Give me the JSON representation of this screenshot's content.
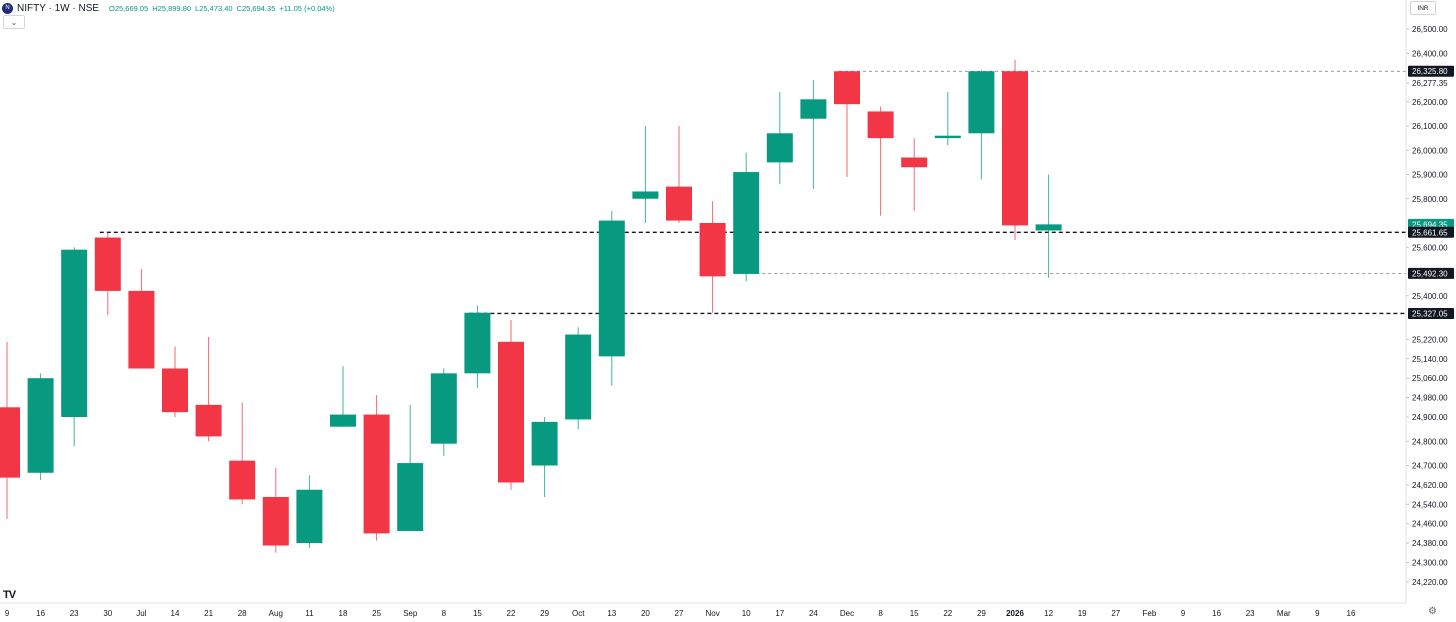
{
  "header": {
    "symbol": "NIFTY · 1W · NSE",
    "open": "O25,669.05",
    "high": "H25,899.80",
    "low": "L25,473.40",
    "close": "C25,694.35",
    "change": "+11.05 (+0.04%)",
    "logo_icon": "nifty-logo-icon",
    "collapse_icon": "chevron-down-icon"
  },
  "currency": "INR",
  "chart_data": {
    "type": "candlestick",
    "title": "",
    "timeframe": "1W",
    "colors": {
      "up": "#089981",
      "down": "#f23645"
    },
    "y_ticks": [
      26500,
      26400,
      26277.35,
      26200,
      26100,
      26000,
      25900,
      25800,
      25600,
      25400,
      25220,
      25140,
      25060,
      24980,
      24900,
      24800,
      24700,
      24620,
      24540,
      24460,
      24380,
      24300,
      24220
    ],
    "y_tick_labels": [
      "26,500.00",
      "26,400.00",
      "26,277.35",
      "26,200.00",
      "26,100.00",
      "26,000.00",
      "25,900.00",
      "25,800.00",
      "25,600.00",
      "25,400.00",
      "25,220.00",
      "25,140.00",
      "25,060.00",
      "24,980.00",
      "24,900.00",
      "24,800.00",
      "24,700.00",
      "24,620.00",
      "24,540.00",
      "24,460.00",
      "24,380.00",
      "24,300.00",
      "24,220.00"
    ],
    "x_labels": [
      {
        "i": 0,
        "t": "9"
      },
      {
        "i": 1,
        "t": "16"
      },
      {
        "i": 2,
        "t": "23"
      },
      {
        "i": 3,
        "t": "30"
      },
      {
        "i": 4,
        "t": "Jul"
      },
      {
        "i": 5,
        "t": "14"
      },
      {
        "i": 6,
        "t": "21"
      },
      {
        "i": 7,
        "t": "28"
      },
      {
        "i": 8,
        "t": "Aug"
      },
      {
        "i": 9,
        "t": "11"
      },
      {
        "i": 10,
        "t": "18"
      },
      {
        "i": 11,
        "t": "25"
      },
      {
        "i": 12,
        "t": "Sep"
      },
      {
        "i": 13,
        "t": "8"
      },
      {
        "i": 14,
        "t": "15"
      },
      {
        "i": 15,
        "t": "22"
      },
      {
        "i": 16,
        "t": "29"
      },
      {
        "i": 17,
        "t": "Oct"
      },
      {
        "i": 18,
        "t": "13"
      },
      {
        "i": 19,
        "t": "20"
      },
      {
        "i": 20,
        "t": "27"
      },
      {
        "i": 21,
        "t": "Nov"
      },
      {
        "i": 22,
        "t": "10"
      },
      {
        "i": 23,
        "t": "17"
      },
      {
        "i": 24,
        "t": "24"
      },
      {
        "i": 25,
        "t": "Dec"
      },
      {
        "i": 26,
        "t": "8"
      },
      {
        "i": 27,
        "t": "15"
      },
      {
        "i": 28,
        "t": "22"
      },
      {
        "i": 29,
        "t": "29"
      },
      {
        "i": 30,
        "t": "2026",
        "bold": true
      },
      {
        "i": 31,
        "t": "12"
      },
      {
        "i": 32,
        "t": "19"
      },
      {
        "i": 33,
        "t": "27"
      },
      {
        "i": 34,
        "t": "Feb"
      },
      {
        "i": 35,
        "t": "9"
      },
      {
        "i": 36,
        "t": "16"
      },
      {
        "i": 37,
        "t": "23"
      },
      {
        "i": 38,
        "t": "Mar"
      },
      {
        "i": 39,
        "t": "9"
      },
      {
        "i": 40,
        "t": "16"
      }
    ],
    "candles": [
      {
        "week": "9",
        "open": 24940,
        "high": 25210,
        "low": 24480,
        "close": 24650
      },
      {
        "week": "16",
        "open": 24670,
        "high": 25080,
        "low": 24640,
        "close": 25060
      },
      {
        "week": "23",
        "open": 24900,
        "high": 25600,
        "low": 24780,
        "close": 25590
      },
      {
        "week": "30",
        "open": 25640,
        "high": 25660,
        "low": 25320,
        "close": 25420
      },
      {
        "week": "Jul",
        "open": 25420,
        "high": 25510,
        "low": 25100,
        "close": 25100
      },
      {
        "week": "14",
        "open": 25100,
        "high": 25190,
        "low": 24900,
        "close": 24920
      },
      {
        "week": "21",
        "open": 24950,
        "high": 25230,
        "low": 24800,
        "close": 24820
      },
      {
        "week": "28",
        "open": 24720,
        "high": 24960,
        "low": 24540,
        "close": 24560
      },
      {
        "week": "Aug",
        "open": 24570,
        "high": 24690,
        "low": 24340,
        "close": 24370
      },
      {
        "week": "11",
        "open": 24380,
        "high": 24660,
        "low": 24360,
        "close": 24600
      },
      {
        "week": "18",
        "open": 24860,
        "high": 25110,
        "low": 24860,
        "close": 24910
      },
      {
        "week": "25",
        "open": 24910,
        "high": 24990,
        "low": 24390,
        "close": 24420
      },
      {
        "week": "Sep",
        "open": 24430,
        "high": 24950,
        "low": 24430,
        "close": 24710
      },
      {
        "week": "8",
        "open": 24790,
        "high": 25100,
        "low": 24740,
        "close": 25080
      },
      {
        "week": "15",
        "open": 25080,
        "high": 25360,
        "low": 25020,
        "close": 25330
      },
      {
        "week": "22",
        "open": 25210,
        "high": 25300,
        "low": 24600,
        "close": 24630
      },
      {
        "week": "29",
        "open": 24700,
        "high": 24900,
        "low": 24570,
        "close": 24880
      },
      {
        "week": "Oct",
        "open": 24890,
        "high": 25270,
        "low": 24850,
        "close": 25240
      },
      {
        "week": "13",
        "open": 25150,
        "high": 25750,
        "low": 25030,
        "close": 25710
      },
      {
        "week": "20",
        "open": 25800,
        "high": 26100,
        "low": 25700,
        "close": 25830
      },
      {
        "week": "27",
        "open": 25850,
        "high": 26100,
        "low": 25700,
        "close": 25710
      },
      {
        "week": "Nov",
        "open": 25700,
        "high": 25790,
        "low": 25330,
        "close": 25480
      },
      {
        "week": "10",
        "open": 25490,
        "high": 25990,
        "low": 25460,
        "close": 25910
      },
      {
        "week": "17",
        "open": 25950,
        "high": 26240,
        "low": 25860,
        "close": 26070
      },
      {
        "week": "24",
        "open": 26130,
        "high": 26290,
        "low": 25840,
        "close": 26210
      },
      {
        "week": "Dec",
        "open": 26325.8,
        "high": 26325.8,
        "low": 25890,
        "close": 26190
      },
      {
        "week": "8",
        "open": 26160,
        "high": 26180,
        "low": 25730,
        "close": 26050
      },
      {
        "week": "15",
        "open": 25970,
        "high": 26050,
        "low": 25750,
        "close": 25930
      },
      {
        "week": "22",
        "open": 26050,
        "high": 26240,
        "low": 26020,
        "close": 26060
      },
      {
        "week": "29",
        "open": 26070,
        "high": 26330,
        "low": 25880,
        "close": 26325.8
      },
      {
        "week": "2026",
        "open": 26325.8,
        "high": 26373,
        "low": 25630,
        "close": 25690
      },
      {
        "week": "12",
        "open": 25669.05,
        "high": 25899.8,
        "low": 25473.4,
        "close": 25694.35
      }
    ],
    "levels": [
      {
        "value": 26325.8,
        "label": "26,325.80",
        "style": "dashed-thin",
        "start_index": 25
      },
      {
        "value": 25661.65,
        "label": "25,661.65",
        "style": "dashed-thick",
        "start_index": 3
      },
      {
        "value": 25492.3,
        "label": "25,492.30",
        "style": "dashed-thin",
        "start_index": 22
      },
      {
        "value": 25327.05,
        "label": "25,327.05",
        "style": "dashed-thick",
        "start_index": 14
      }
    ],
    "last_price": {
      "value": 25694.35,
      "label": "25,694.35"
    }
  }
}
